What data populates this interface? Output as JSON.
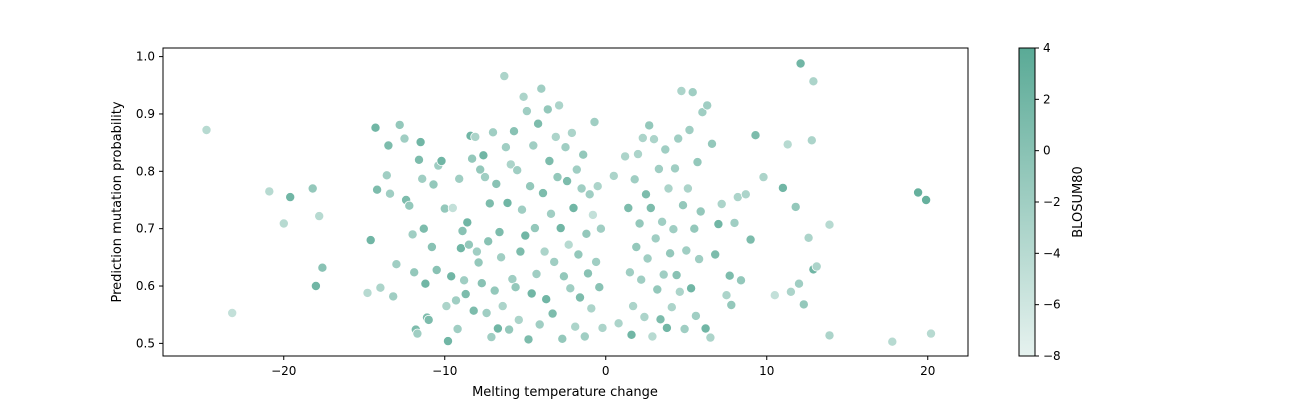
{
  "chart_data": {
    "type": "scatter",
    "title": "",
    "xlabel": "Melting temperature change",
    "ylabel": "Prediction mutation probability",
    "xlim": [
      -27.5,
      22.5
    ],
    "ylim": [
      0.478,
      1.015
    ],
    "xticks": [
      -20,
      -10,
      0,
      10,
      20
    ],
    "xtick_labels": [
      "−20",
      "−10",
      "0",
      "10",
      "20"
    ],
    "yticks": [
      0.5,
      0.6,
      0.7,
      0.8,
      0.9,
      1.0
    ],
    "ytick_labels": [
      "0.5",
      "0.6",
      "0.7",
      "0.8",
      "0.9",
      "1.0"
    ],
    "grid": false,
    "colorbar": {
      "label": "BLOSUM80",
      "min": -8,
      "max": 4,
      "ticks": [
        4,
        2,
        0,
        -2,
        -4,
        -6,
        -8
      ],
      "tick_labels": [
        "4",
        "2",
        "0",
        "−2",
        "−4",
        "−6",
        "−8"
      ],
      "color_low": "#e6f2ef",
      "color_high": "#5aaa96"
    },
    "points": [
      [
        -24.8,
        0.872,
        -4
      ],
      [
        -23.2,
        0.553,
        -5
      ],
      [
        -20.9,
        0.765,
        -4
      ],
      [
        -20.0,
        0.709,
        -4
      ],
      [
        -19.6,
        0.755,
        2
      ],
      [
        -18.2,
        0.77,
        -1
      ],
      [
        -18.0,
        0.6,
        2
      ],
      [
        -17.8,
        0.722,
        -4
      ],
      [
        -17.6,
        0.632,
        0
      ],
      [
        -14.8,
        0.588,
        -4
      ],
      [
        -14.6,
        0.68,
        2
      ],
      [
        -14.3,
        0.876,
        2
      ],
      [
        -14.2,
        0.768,
        1
      ],
      [
        -14.0,
        0.597,
        -3
      ],
      [
        -13.6,
        0.793,
        -2
      ],
      [
        -13.5,
        0.845,
        1
      ],
      [
        -13.4,
        0.761,
        -2
      ],
      [
        -13.2,
        0.582,
        -2
      ],
      [
        -13.0,
        0.638,
        -2
      ],
      [
        -12.8,
        0.881,
        -1
      ],
      [
        -12.5,
        0.857,
        -2
      ],
      [
        -12.4,
        0.75,
        1
      ],
      [
        -12.2,
        0.74,
        -1
      ],
      [
        -12.0,
        0.69,
        -2
      ],
      [
        -11.9,
        0.624,
        -1
      ],
      [
        -11.8,
        0.524,
        1
      ],
      [
        -11.7,
        0.517,
        -2
      ],
      [
        -11.6,
        0.82,
        1
      ],
      [
        -11.5,
        0.851,
        2
      ],
      [
        -11.4,
        0.787,
        -2
      ],
      [
        -11.3,
        0.7,
        1
      ],
      [
        -11.2,
        0.604,
        2
      ],
      [
        -11.1,
        0.545,
        1
      ],
      [
        -11.0,
        0.541,
        1
      ],
      [
        -10.8,
        0.668,
        0
      ],
      [
        -10.7,
        0.777,
        -1
      ],
      [
        -10.5,
        0.628,
        0
      ],
      [
        -10.4,
        0.81,
        -2
      ],
      [
        -10.2,
        0.818,
        2
      ],
      [
        -10.0,
        0.735,
        -1
      ],
      [
        -9.9,
        0.565,
        -3
      ],
      [
        -9.8,
        0.504,
        2
      ],
      [
        -9.6,
        0.617,
        2
      ],
      [
        -9.5,
        0.736,
        -5
      ],
      [
        -9.3,
        0.575,
        -2
      ],
      [
        -9.2,
        0.525,
        -2
      ],
      [
        -9.1,
        0.787,
        -2
      ],
      [
        -9.0,
        0.666,
        2
      ],
      [
        -8.9,
        0.696,
        0
      ],
      [
        -8.8,
        0.61,
        -2
      ],
      [
        -8.7,
        0.586,
        1
      ],
      [
        -8.6,
        0.711,
        2
      ],
      [
        -8.5,
        0.672,
        -1
      ],
      [
        -8.4,
        0.862,
        2
      ],
      [
        -8.3,
        0.822,
        -1
      ],
      [
        -8.2,
        0.557,
        1
      ],
      [
        -8.1,
        0.86,
        -3
      ],
      [
        -8.0,
        0.66,
        -2
      ],
      [
        -7.9,
        0.641,
        -1
      ],
      [
        -7.8,
        0.803,
        -1
      ],
      [
        -7.7,
        0.605,
        0
      ],
      [
        -7.6,
        0.828,
        2
      ],
      [
        -7.5,
        0.79,
        -2
      ],
      [
        -7.4,
        0.553,
        -2
      ],
      [
        -7.3,
        0.678,
        0
      ],
      [
        -7.2,
        0.744,
        1
      ],
      [
        -7.1,
        0.511,
        -2
      ],
      [
        -7.0,
        0.868,
        -2
      ],
      [
        -6.9,
        0.592,
        -1
      ],
      [
        -6.8,
        0.778,
        0
      ],
      [
        -6.7,
        0.526,
        2
      ],
      [
        -6.6,
        0.694,
        1
      ],
      [
        -6.5,
        0.65,
        -2
      ],
      [
        -6.4,
        0.565,
        -3
      ],
      [
        -6.3,
        0.966,
        -3
      ],
      [
        -6.2,
        0.842,
        -2
      ],
      [
        -6.1,
        0.745,
        2
      ],
      [
        -6.0,
        0.524,
        -1
      ],
      [
        -5.9,
        0.812,
        -3
      ],
      [
        -5.8,
        0.612,
        -2
      ],
      [
        -5.7,
        0.87,
        0
      ],
      [
        -5.6,
        0.598,
        -1
      ],
      [
        -5.5,
        0.802,
        -2
      ],
      [
        -5.4,
        0.541,
        -3
      ],
      [
        -5.3,
        0.66,
        1
      ],
      [
        -5.2,
        0.733,
        -2
      ],
      [
        -5.1,
        0.93,
        -3
      ],
      [
        -5.0,
        0.688,
        2
      ],
      [
        -4.9,
        0.905,
        -2
      ],
      [
        -4.8,
        0.507,
        1
      ],
      [
        -4.7,
        0.774,
        -1
      ],
      [
        -4.6,
        0.587,
        2
      ],
      [
        -4.5,
        0.845,
        -2
      ],
      [
        -4.4,
        0.701,
        -1
      ],
      [
        -4.3,
        0.621,
        -2
      ],
      [
        -4.2,
        0.883,
        1
      ],
      [
        -4.1,
        0.533,
        -2
      ],
      [
        -4.0,
        0.944,
        -2
      ],
      [
        -3.9,
        0.762,
        1
      ],
      [
        -3.8,
        0.66,
        -3
      ],
      [
        -3.7,
        0.577,
        2
      ],
      [
        -3.6,
        0.908,
        -1
      ],
      [
        -3.5,
        0.818,
        1
      ],
      [
        -3.4,
        0.726,
        -2
      ],
      [
        -3.3,
        0.552,
        1
      ],
      [
        -3.2,
        0.642,
        -2
      ],
      [
        -3.1,
        0.86,
        -3
      ],
      [
        -3.0,
        0.79,
        -1
      ],
      [
        -2.9,
        0.915,
        -3
      ],
      [
        -2.8,
        0.701,
        2
      ],
      [
        -2.7,
        0.508,
        -1
      ],
      [
        -2.6,
        0.617,
        -1
      ],
      [
        -2.5,
        0.842,
        -2
      ],
      [
        -2.4,
        0.783,
        1
      ],
      [
        -2.3,
        0.672,
        -4
      ],
      [
        -2.2,
        0.596,
        -2
      ],
      [
        -2.1,
        0.867,
        -3
      ],
      [
        -2.0,
        0.736,
        2
      ],
      [
        -1.9,
        0.529,
        -3
      ],
      [
        -1.8,
        0.803,
        -2
      ],
      [
        -1.7,
        0.655,
        -1
      ],
      [
        -1.6,
        0.58,
        1
      ],
      [
        -1.5,
        0.77,
        -2
      ],
      [
        -1.4,
        0.829,
        -1
      ],
      [
        -1.3,
        0.512,
        -2
      ],
      [
        -1.2,
        0.691,
        -1
      ],
      [
        -1.1,
        0.622,
        0
      ],
      [
        -1.0,
        0.76,
        -2
      ],
      [
        -0.9,
        0.561,
        -3
      ],
      [
        -0.8,
        0.724,
        -5
      ],
      [
        -0.7,
        0.886,
        -2
      ],
      [
        -0.6,
        0.642,
        -2
      ],
      [
        -0.5,
        0.774,
        -3
      ],
      [
        -0.4,
        0.598,
        0
      ],
      [
        -0.3,
        0.7,
        -2
      ],
      [
        -0.2,
        0.527,
        -3
      ],
      [
        0.5,
        0.792,
        -3
      ],
      [
        0.8,
        0.535,
        -3
      ],
      [
        1.2,
        0.826,
        -3
      ],
      [
        1.4,
        0.736,
        1
      ],
      [
        1.5,
        0.624,
        -2
      ],
      [
        1.6,
        0.515,
        2
      ],
      [
        1.7,
        0.565,
        -3
      ],
      [
        1.8,
        0.786,
        -2
      ],
      [
        1.9,
        0.668,
        -1
      ],
      [
        2.0,
        0.83,
        -3
      ],
      [
        2.1,
        0.709,
        -1
      ],
      [
        2.2,
        0.611,
        -2
      ],
      [
        2.3,
        0.858,
        -3
      ],
      [
        2.4,
        0.546,
        -3
      ],
      [
        2.5,
        0.76,
        1
      ],
      [
        2.6,
        0.648,
        -2
      ],
      [
        2.7,
        0.88,
        -1
      ],
      [
        2.8,
        0.736,
        1
      ],
      [
        2.9,
        0.512,
        -4
      ],
      [
        3.0,
        0.856,
        -3
      ],
      [
        3.1,
        0.683,
        -2
      ],
      [
        3.2,
        0.594,
        -1
      ],
      [
        3.3,
        0.804,
        -2
      ],
      [
        3.4,
        0.542,
        1
      ],
      [
        3.5,
        0.712,
        -2
      ],
      [
        3.6,
        0.62,
        -2
      ],
      [
        3.7,
        0.838,
        -2
      ],
      [
        3.8,
        0.527,
        2
      ],
      [
        3.9,
        0.77,
        -3
      ],
      [
        4.0,
        0.657,
        -1
      ],
      [
        4.1,
        0.563,
        -3
      ],
      [
        4.2,
        0.699,
        -2
      ],
      [
        4.3,
        0.805,
        -2
      ],
      [
        4.4,
        0.619,
        0
      ],
      [
        4.5,
        0.857,
        -2
      ],
      [
        4.6,
        0.59,
        -3
      ],
      [
        4.7,
        0.94,
        -3
      ],
      [
        4.8,
        0.741,
        -1
      ],
      [
        4.9,
        0.525,
        -2
      ],
      [
        5.0,
        0.662,
        -2
      ],
      [
        5.1,
        0.77,
        -3
      ],
      [
        5.2,
        0.872,
        -2
      ],
      [
        5.3,
        0.596,
        2
      ],
      [
        5.4,
        0.938,
        -2
      ],
      [
        5.5,
        0.7,
        -1
      ],
      [
        5.6,
        0.548,
        -2
      ],
      [
        5.7,
        0.816,
        -1
      ],
      [
        5.8,
        0.647,
        -2
      ],
      [
        5.9,
        0.73,
        -1
      ],
      [
        6.0,
        0.903,
        -2
      ],
      [
        6.2,
        0.526,
        2
      ],
      [
        6.3,
        0.915,
        -2
      ],
      [
        6.5,
        0.51,
        -3
      ],
      [
        6.6,
        0.848,
        -1
      ],
      [
        6.8,
        0.655,
        1
      ],
      [
        7.0,
        0.708,
        2
      ],
      [
        7.2,
        0.743,
        -3
      ],
      [
        7.5,
        0.584,
        -3
      ],
      [
        7.7,
        0.618,
        1
      ],
      [
        7.8,
        0.567,
        -1
      ],
      [
        8.0,
        0.71,
        -2
      ],
      [
        8.2,
        0.755,
        -3
      ],
      [
        8.4,
        0.61,
        -1
      ],
      [
        8.7,
        0.76,
        -3
      ],
      [
        9.0,
        0.681,
        1
      ],
      [
        9.3,
        0.863,
        1
      ],
      [
        9.8,
        0.79,
        -3
      ],
      [
        10.5,
        0.584,
        -5
      ],
      [
        11.0,
        0.771,
        2
      ],
      [
        11.3,
        0.847,
        -4
      ],
      [
        11.5,
        0.59,
        -3
      ],
      [
        11.8,
        0.738,
        -1
      ],
      [
        12.0,
        0.604,
        -2
      ],
      [
        12.1,
        0.988,
        2
      ],
      [
        12.3,
        0.568,
        -1
      ],
      [
        12.6,
        0.684,
        -3
      ],
      [
        12.8,
        0.854,
        -3
      ],
      [
        12.9,
        0.957,
        -3
      ],
      [
        12.9,
        0.629,
        2
      ],
      [
        13.1,
        0.634,
        -3
      ],
      [
        13.9,
        0.514,
        -3
      ],
      [
        13.9,
        0.707,
        -4
      ],
      [
        17.8,
        0.503,
        -4
      ],
      [
        19.4,
        0.763,
        3
      ],
      [
        19.9,
        0.75,
        3
      ],
      [
        20.2,
        0.517,
        -4
      ]
    ]
  }
}
